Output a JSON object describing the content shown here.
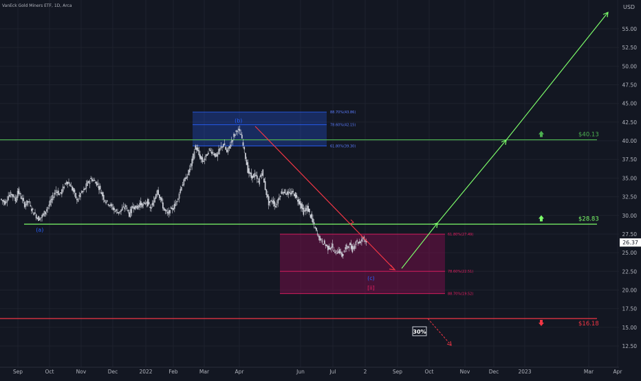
{
  "header": {
    "title": "VanEck Gold Miners ETF, 1D, Arca"
  },
  "colors": {
    "background": "#131722",
    "grid": "#1e222d",
    "axis_text": "#b2b5be",
    "candle": "#d1d4dc",
    "green": "#4caf50",
    "lime": "#7cfc6a",
    "red": "#f23645",
    "blue": "#2962ff",
    "purple": "#880e4f",
    "pink": "#e91e63"
  },
  "chart_data": {
    "type": "candlestick",
    "ylabel": "USD",
    "ylim": [
      11,
      57.5
    ],
    "grid": true,
    "y_ticks": [
      12.5,
      15.0,
      17.5,
      20.0,
      22.5,
      25.0,
      27.5,
      30.0,
      32.5,
      35.0,
      37.5,
      40.0,
      42.5,
      45.0,
      47.5,
      50.0,
      52.5,
      55.0
    ],
    "x_ticks": [
      "Sep",
      "Oct",
      "Nov",
      "Dec",
      "2022",
      "Feb",
      "Mar",
      "Apr",
      "Jun",
      "Jul",
      "2",
      "Sep",
      "Oct",
      "Nov",
      "Dec",
      "2023",
      "Mar",
      "Apr"
    ],
    "last_price": "26.37",
    "price_series": [
      {
        "t": 0,
        "c": 32.2
      },
      {
        "t": 4,
        "c": 31.7
      },
      {
        "t": 7,
        "c": 32.6
      },
      {
        "t": 10,
        "c": 32.9
      },
      {
        "t": 13,
        "c": 32.0
      },
      {
        "t": 15,
        "c": 33.3
      },
      {
        "t": 18,
        "c": 32.4
      },
      {
        "t": 21,
        "c": 31.4
      },
      {
        "t": 24,
        "c": 31.9
      },
      {
        "t": 27,
        "c": 30.8
      },
      {
        "t": 30,
        "c": 30.1
      },
      {
        "t": 33,
        "c": 29.5
      },
      {
        "t": 36,
        "c": 29.9
      },
      {
        "t": 39,
        "c": 30.6
      },
      {
        "t": 42,
        "c": 31.4
      },
      {
        "t": 45,
        "c": 32.4
      },
      {
        "t": 48,
        "c": 33.4
      },
      {
        "t": 51,
        "c": 32.8
      },
      {
        "t": 54,
        "c": 33.6
      },
      {
        "t": 57,
        "c": 34.6
      },
      {
        "t": 60,
        "c": 34.1
      },
      {
        "t": 63,
        "c": 33.2
      },
      {
        "t": 66,
        "c": 32.0
      },
      {
        "t": 69,
        "c": 32.9
      },
      {
        "t": 72,
        "c": 33.4
      },
      {
        "t": 75,
        "c": 34.3
      },
      {
        "t": 78,
        "c": 34.9
      },
      {
        "t": 81,
        "c": 34.6
      },
      {
        "t": 84,
        "c": 34.1
      },
      {
        "t": 87,
        "c": 33.0
      },
      {
        "t": 90,
        "c": 32.0
      },
      {
        "t": 93,
        "c": 31.6
      },
      {
        "t": 96,
        "c": 31.1
      },
      {
        "t": 99,
        "c": 30.6
      },
      {
        "t": 102,
        "c": 30.4
      },
      {
        "t": 105,
        "c": 30.9
      },
      {
        "t": 108,
        "c": 31.2
      },
      {
        "t": 111,
        "c": 30.1
      },
      {
        "t": 114,
        "c": 31.3
      },
      {
        "t": 117,
        "c": 31.0
      },
      {
        "t": 120,
        "c": 31.6
      },
      {
        "t": 123,
        "c": 31.3
      },
      {
        "t": 126,
        "c": 31.9
      },
      {
        "t": 129,
        "c": 30.9
      },
      {
        "t": 132,
        "c": 31.8
      },
      {
        "t": 135,
        "c": 33.5
      },
      {
        "t": 138,
        "c": 32.1
      },
      {
        "t": 141,
        "c": 30.7
      },
      {
        "t": 144,
        "c": 30.2
      },
      {
        "t": 147,
        "c": 30.8
      },
      {
        "t": 150,
        "c": 31.3
      },
      {
        "t": 153,
        "c": 32.5
      },
      {
        "t": 156,
        "c": 34.0
      },
      {
        "t": 159,
        "c": 34.8
      },
      {
        "t": 162,
        "c": 35.8
      },
      {
        "t": 165,
        "c": 37.3
      },
      {
        "t": 168,
        "c": 39.3
      },
      {
        "t": 171,
        "c": 38.1
      },
      {
        "t": 174,
        "c": 37.2
      },
      {
        "t": 177,
        "c": 37.9
      },
      {
        "t": 180,
        "c": 38.8
      },
      {
        "t": 183,
        "c": 38.4
      },
      {
        "t": 186,
        "c": 37.9
      },
      {
        "t": 189,
        "c": 38.9
      },
      {
        "t": 192,
        "c": 39.6
      },
      {
        "t": 195,
        "c": 38.4
      },
      {
        "t": 198,
        "c": 39.6
      },
      {
        "t": 201,
        "c": 40.7
      },
      {
        "t": 204,
        "c": 41.6
      },
      {
        "t": 207,
        "c": 40.8
      },
      {
        "t": 210,
        "c": 38.6
      },
      {
        "t": 213,
        "c": 36.0
      },
      {
        "t": 216,
        "c": 35.1
      },
      {
        "t": 219,
        "c": 35.5
      },
      {
        "t": 222,
        "c": 34.4
      },
      {
        "t": 225,
        "c": 35.9
      },
      {
        "t": 228,
        "c": 33.6
      },
      {
        "t": 231,
        "c": 31.6
      },
      {
        "t": 234,
        "c": 32.0
      },
      {
        "t": 237,
        "c": 31.2
      },
      {
        "t": 240,
        "c": 32.6
      },
      {
        "t": 243,
        "c": 33.3
      },
      {
        "t": 246,
        "c": 33.0
      },
      {
        "t": 249,
        "c": 32.9
      },
      {
        "t": 252,
        "c": 33.1
      },
      {
        "t": 255,
        "c": 32.3
      },
      {
        "t": 258,
        "c": 31.6
      },
      {
        "t": 261,
        "c": 30.4
      },
      {
        "t": 264,
        "c": 31.1
      },
      {
        "t": 267,
        "c": 29.9
      },
      {
        "t": 270,
        "c": 28.6
      },
      {
        "t": 273,
        "c": 27.4
      },
      {
        "t": 276,
        "c": 26.6
      },
      {
        "t": 279,
        "c": 26.2
      },
      {
        "t": 282,
        "c": 25.6
      },
      {
        "t": 285,
        "c": 25.9
      },
      {
        "t": 288,
        "c": 24.9
      },
      {
        "t": 291,
        "c": 25.4
      },
      {
        "t": 294,
        "c": 24.6
      },
      {
        "t": 297,
        "c": 25.6
      },
      {
        "t": 300,
        "c": 26.1
      },
      {
        "t": 303,
        "c": 25.4
      },
      {
        "t": 306,
        "c": 26.6
      },
      {
        "t": 309,
        "c": 26.3
      },
      {
        "t": 312,
        "c": 27.1
      },
      {
        "t": 315,
        "c": 26.4
      }
    ],
    "levels": [
      {
        "label": "$40.13",
        "value": 40.13,
        "color": "#4caf50",
        "arrow": "up"
      },
      {
        "label": "$28.83",
        "value": 28.83,
        "color": "#7cfc6a",
        "arrow": "up"
      },
      {
        "label": "$16.18",
        "value": 16.18,
        "color": "#f23645",
        "arrow": "down"
      }
    ],
    "fib_upper": [
      {
        "label": "88.70%(43.86)",
        "value": 43.86
      },
      {
        "label": "78.60%(42.15)",
        "value": 42.15
      },
      {
        "label": "61.80%(39.30)",
        "value": 39.3
      }
    ],
    "fib_lower": [
      {
        "label": "61.80%(27.49)",
        "value": 27.49
      },
      {
        "label": "78.60%(22.51)",
        "value": 22.51
      },
      {
        "label": "88.70%(19.52)",
        "value": 19.52
      }
    ],
    "wave_labels": [
      {
        "text": "(a)",
        "t": 33,
        "value": 28.1,
        "color": "#2962ff"
      },
      {
        "text": "(b)",
        "t": 204,
        "value": 42.7,
        "color": "#2962ff"
      },
      {
        "text": "(c)",
        "t": 318,
        "value": 21.6,
        "color": "#2962ff"
      },
      {
        "text": "[ii]",
        "t": 318,
        "value": 20.3,
        "color": "#e91e63"
      }
    ],
    "annotation_box": "30%"
  }
}
